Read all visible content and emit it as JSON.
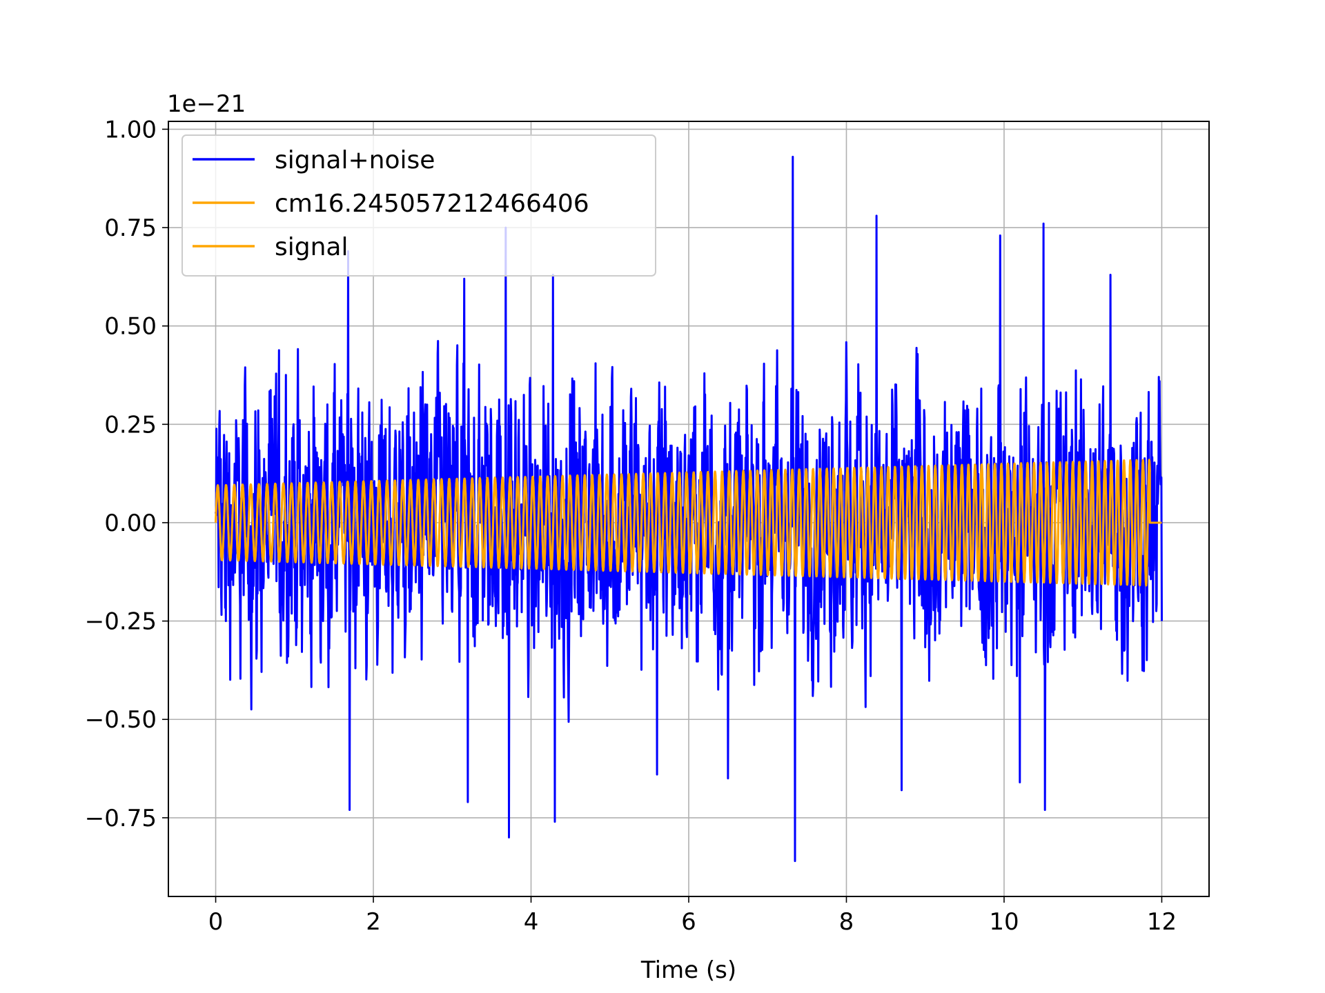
{
  "chart_data": {
    "type": "line",
    "title": "",
    "xlabel": "Time (s)",
    "ylabel": "",
    "y_offset_text": "1e−21",
    "xlim": [
      -0.6,
      12.6
    ],
    "ylim": [
      -0.95,
      1.02
    ],
    "x_ticks": [
      0,
      2,
      4,
      6,
      8,
      10,
      12
    ],
    "x_tick_labels": [
      "0",
      "2",
      "4",
      "6",
      "8",
      "10",
      "12"
    ],
    "y_ticks": [
      -0.75,
      -0.5,
      -0.25,
      0.0,
      0.25,
      0.5,
      0.75,
      1.0
    ],
    "y_tick_labels": [
      "−0.75",
      "−0.50",
      "−0.25",
      "0.00",
      "0.25",
      "0.50",
      "0.75",
      "1.00"
    ],
    "grid": true,
    "legend_position": "upper left",
    "series": [
      {
        "name": "signal+noise",
        "color": "#0000ff",
        "kind": "noise",
        "x_range": [
          0,
          12
        ],
        "typical_amplitude": 0.3,
        "max": 0.93,
        "min": -0.86,
        "peaks": [
          {
            "x": 1.68,
            "y": 0.69
          },
          {
            "x": 1.7,
            "y": -0.73
          },
          {
            "x": 3.15,
            "y": 0.62
          },
          {
            "x": 3.2,
            "y": -0.71
          },
          {
            "x": 3.68,
            "y": 0.75
          },
          {
            "x": 3.72,
            "y": -0.8
          },
          {
            "x": 4.28,
            "y": 0.63
          },
          {
            "x": 4.3,
            "y": -0.76
          },
          {
            "x": 5.6,
            "y": -0.64
          },
          {
            "x": 6.5,
            "y": -0.65
          },
          {
            "x": 7.32,
            "y": 0.93
          },
          {
            "x": 7.35,
            "y": -0.86
          },
          {
            "x": 8.38,
            "y": 0.78
          },
          {
            "x": 8.7,
            "y": -0.68
          },
          {
            "x": 9.95,
            "y": 0.73
          },
          {
            "x": 10.2,
            "y": -0.66
          },
          {
            "x": 10.5,
            "y": 0.76
          },
          {
            "x": 10.52,
            "y": -0.73
          },
          {
            "x": 11.35,
            "y": 0.63
          }
        ]
      },
      {
        "name": "cm16.245057212466406",
        "color": "#ffa500",
        "kind": "chirp",
        "x_range": [
          0,
          11.85
        ],
        "amplitude_start": 0.095,
        "amplitude_end": 0.16
      },
      {
        "name": "signal",
        "color": "#ffa500",
        "kind": "chirp",
        "x_range": [
          0,
          11.85
        ],
        "amplitude_start": 0.095,
        "amplitude_end": 0.16,
        "zero_after": [
          11.85,
          12.0
        ]
      }
    ]
  }
}
